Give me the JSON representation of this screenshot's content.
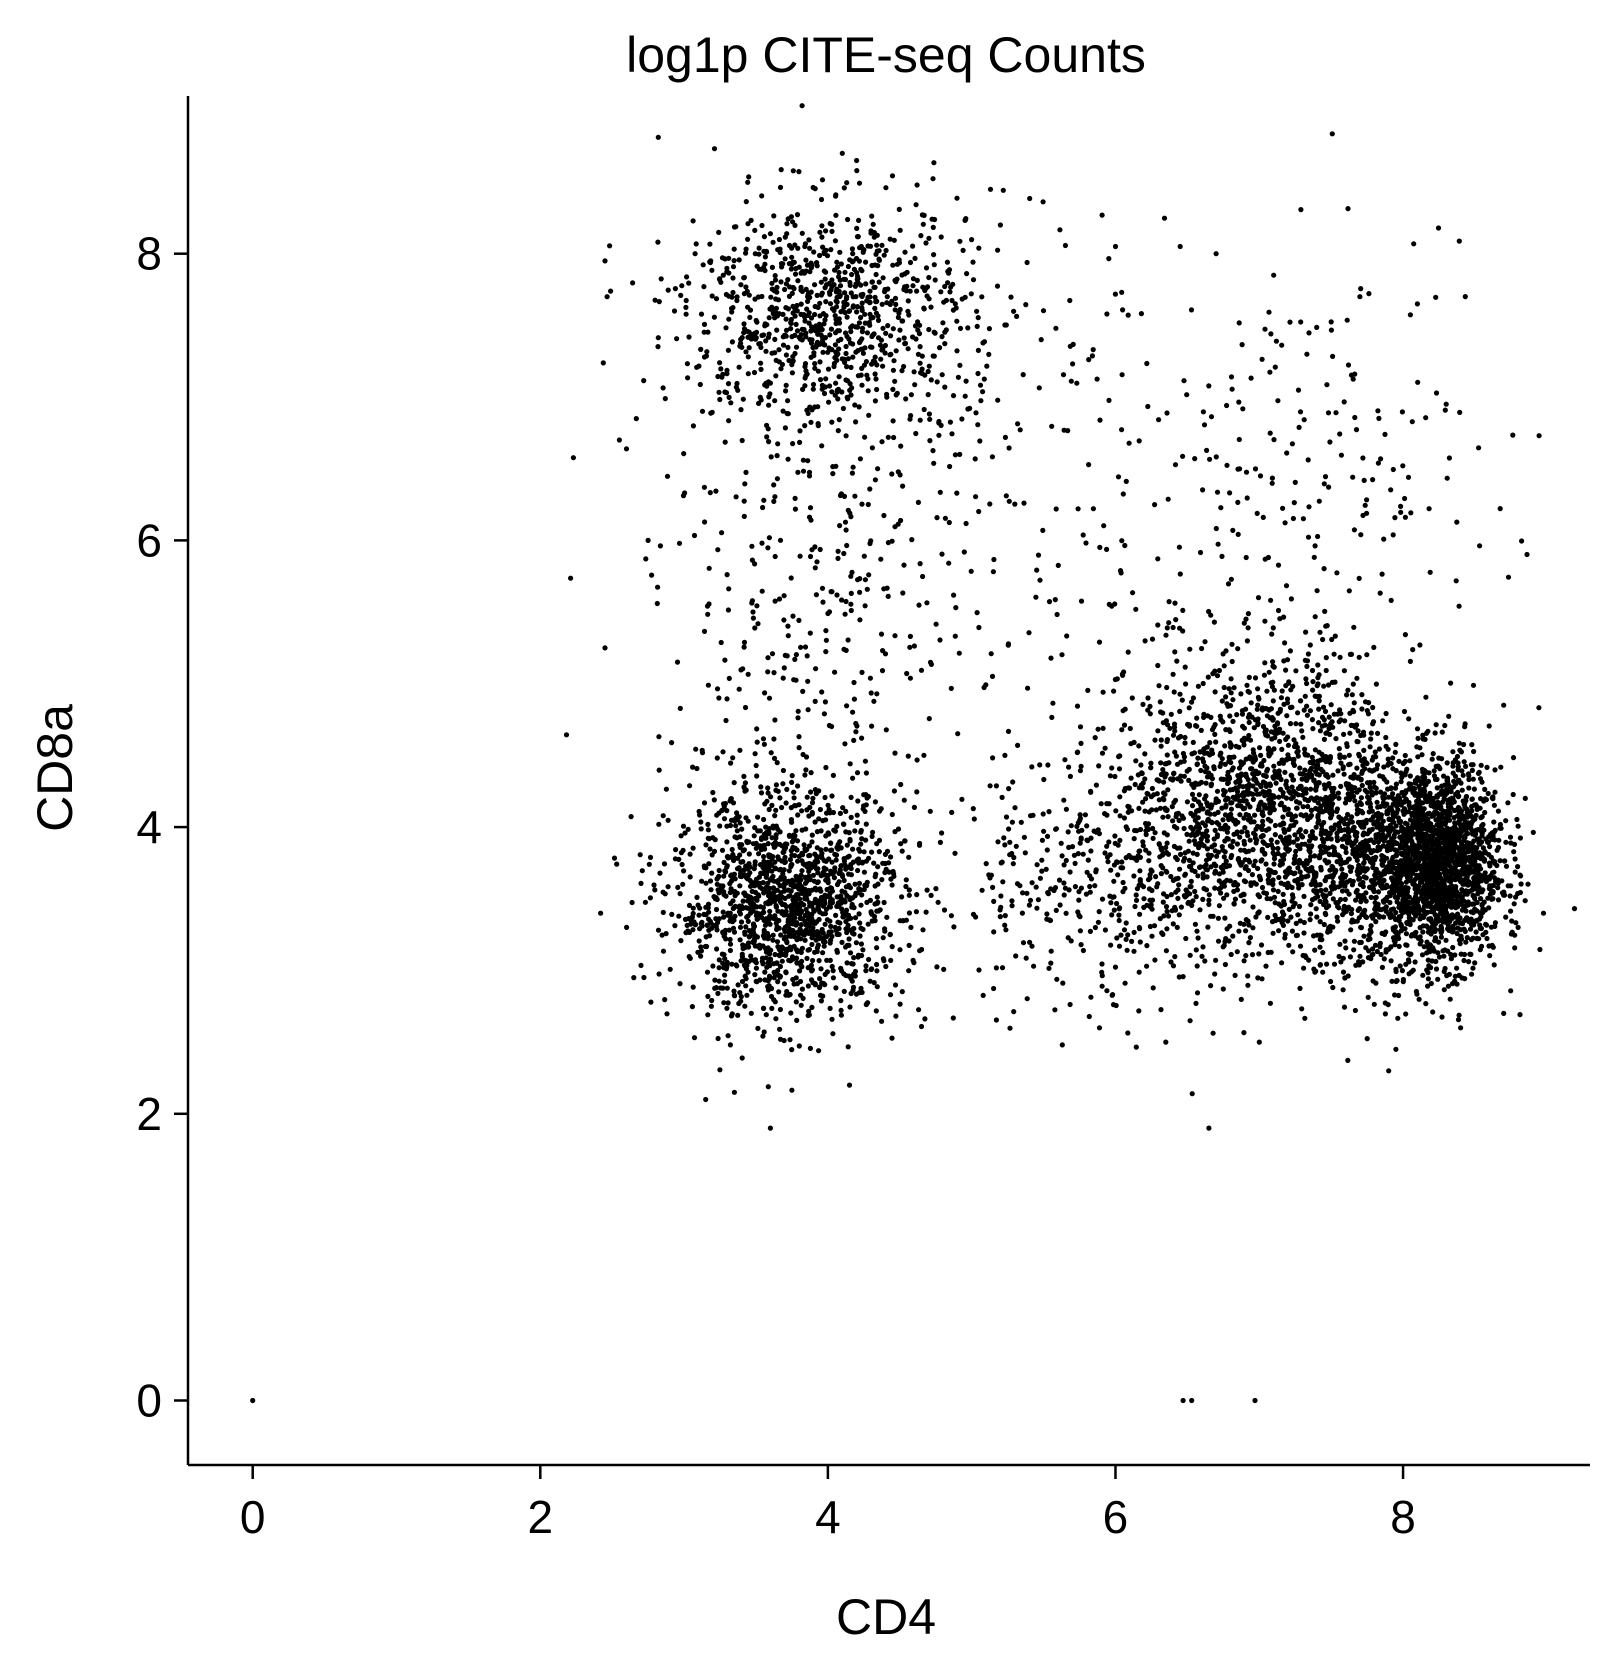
{
  "chart_data": {
    "type": "scatter",
    "title": "log1p CITE-seq Counts",
    "xlabel": "CD4",
    "ylabel": "CD8a",
    "xlim": [
      -0.45,
      9.3
    ],
    "ylim": [
      -0.45,
      9.1
    ],
    "xticks": [
      0,
      2,
      4,
      6,
      8
    ],
    "yticks": [
      0,
      2,
      4,
      6,
      8
    ],
    "grid": false,
    "legend": "none",
    "point_color": "#000000",
    "explicit_points": [
      [
        0.0,
        0.0
      ],
      [
        6.47,
        0.0
      ],
      [
        6.53,
        0.0
      ],
      [
        6.97,
        0.0
      ],
      [
        3.6,
        1.9
      ],
      [
        6.65,
        1.9
      ],
      [
        3.15,
        2.1
      ],
      [
        3.35,
        2.15
      ],
      [
        4.15,
        2.2
      ],
      [
        7.9,
        2.3
      ],
      [
        7.95,
        2.45
      ],
      [
        2.45,
        7.95
      ],
      [
        2.55,
        6.7
      ],
      [
        2.75,
        6.0
      ],
      [
        2.45,
        5.25
      ],
      [
        2.6,
        3.3
      ],
      [
        2.65,
        2.95
      ],
      [
        6.0,
        8.05
      ],
      [
        6.45,
        8.05
      ],
      [
        6.7,
        8.0
      ],
      [
        7.1,
        7.85
      ],
      [
        8.1,
        7.65
      ],
      [
        7.7,
        7.7
      ],
      [
        5.2,
        8.2
      ],
      [
        4.1,
        8.7
      ],
      [
        4.2,
        8.65
      ],
      [
        8.3,
        6.95
      ],
      [
        8.7,
        4.85
      ],
      [
        8.85,
        4.2
      ],
      [
        8.8,
        3.3
      ],
      [
        8.7,
        2.7
      ],
      [
        8.4,
        2.6
      ],
      [
        7.0,
        2.5
      ],
      [
        6.35,
        2.5
      ]
    ],
    "clusters": [
      {
        "cx": 3.72,
        "cy": 3.45,
        "sx": 0.4,
        "sy": 0.38,
        "n": 1500
      },
      {
        "cx": 4.0,
        "cy": 7.6,
        "sx": 0.5,
        "sy": 0.38,
        "n": 900
      },
      {
        "cx": 7.15,
        "cy": 4.15,
        "sx": 0.45,
        "sy": 0.5,
        "n": 1300
      },
      {
        "cx": 8.25,
        "cy": 3.75,
        "sx": 0.22,
        "sy": 0.35,
        "n": 1800
      },
      {
        "cx": 7.7,
        "cy": 3.7,
        "sx": 0.25,
        "sy": 0.4,
        "n": 500
      },
      {
        "cx": 6.5,
        "cy": 4.0,
        "sx": 0.45,
        "sy": 0.55,
        "n": 450
      },
      {
        "cx": 5.7,
        "cy": 3.5,
        "sx": 0.5,
        "sy": 0.45,
        "n": 250
      },
      {
        "cx": 3.9,
        "cy": 5.5,
        "sx": 0.55,
        "sy": 0.9,
        "n": 350
      },
      {
        "cx": 6.5,
        "cy": 6.0,
        "sx": 0.9,
        "sy": 1.0,
        "n": 250
      },
      {
        "cx": 7.8,
        "cy": 6.5,
        "sx": 0.45,
        "sy": 0.9,
        "n": 90
      },
      {
        "cx": 5.0,
        "cy": 6.8,
        "sx": 0.5,
        "sy": 0.7,
        "n": 100
      }
    ]
  }
}
